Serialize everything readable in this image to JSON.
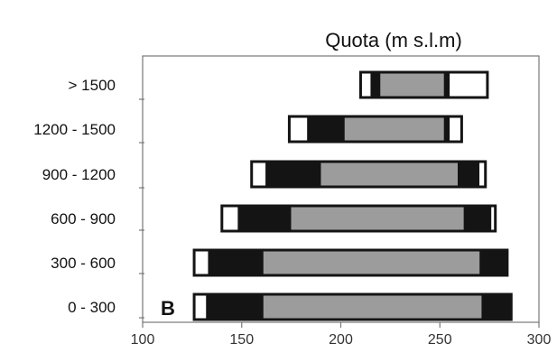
{
  "chart_data": {
    "type": "bar",
    "title": "Quota (m s.l.m)",
    "panel_label": "B",
    "categories": [
      "> 1500",
      "1200 - 1500",
      "900 - 1200",
      "600 - 900",
      "300 - 600",
      "0 - 300"
    ],
    "xlim": [
      100,
      300
    ],
    "x_ticks": [
      100,
      150,
      200,
      250,
      300
    ],
    "bars": [
      {
        "category": "> 1500",
        "start": 210,
        "white1_end": 215,
        "black1_end": 220,
        "grey_end": 252,
        "black2_end": 255,
        "end": 274
      },
      {
        "category": "1200 - 1500",
        "start": 174,
        "white1_end": 183,
        "black1_end": 202,
        "grey_end": 252,
        "black2_end": 255,
        "end": 261
      },
      {
        "category": "900 - 1200",
        "start": 155,
        "white1_end": 162,
        "black1_end": 190,
        "grey_end": 259,
        "black2_end": 270,
        "end": 273
      },
      {
        "category": "600 - 900",
        "start": 140,
        "white1_end": 148,
        "black1_end": 175,
        "grey_end": 262,
        "black2_end": 276,
        "end": 278
      },
      {
        "category": "300 - 600",
        "start": 126,
        "white1_end": 133,
        "black1_end": 161,
        "grey_end": 270,
        "black2_end": 284,
        "end": 284
      },
      {
        "category": "0 - 300",
        "start": 126,
        "white1_end": 132,
        "black1_end": 161,
        "grey_end": 271,
        "black2_end": 286,
        "end": 286
      }
    ],
    "segment_colors": {
      "white": "#ffffff",
      "black": "#141414",
      "grey": "#9c9c9c",
      "outline": "#141414",
      "axis": "#777777"
    },
    "grid": false
  }
}
